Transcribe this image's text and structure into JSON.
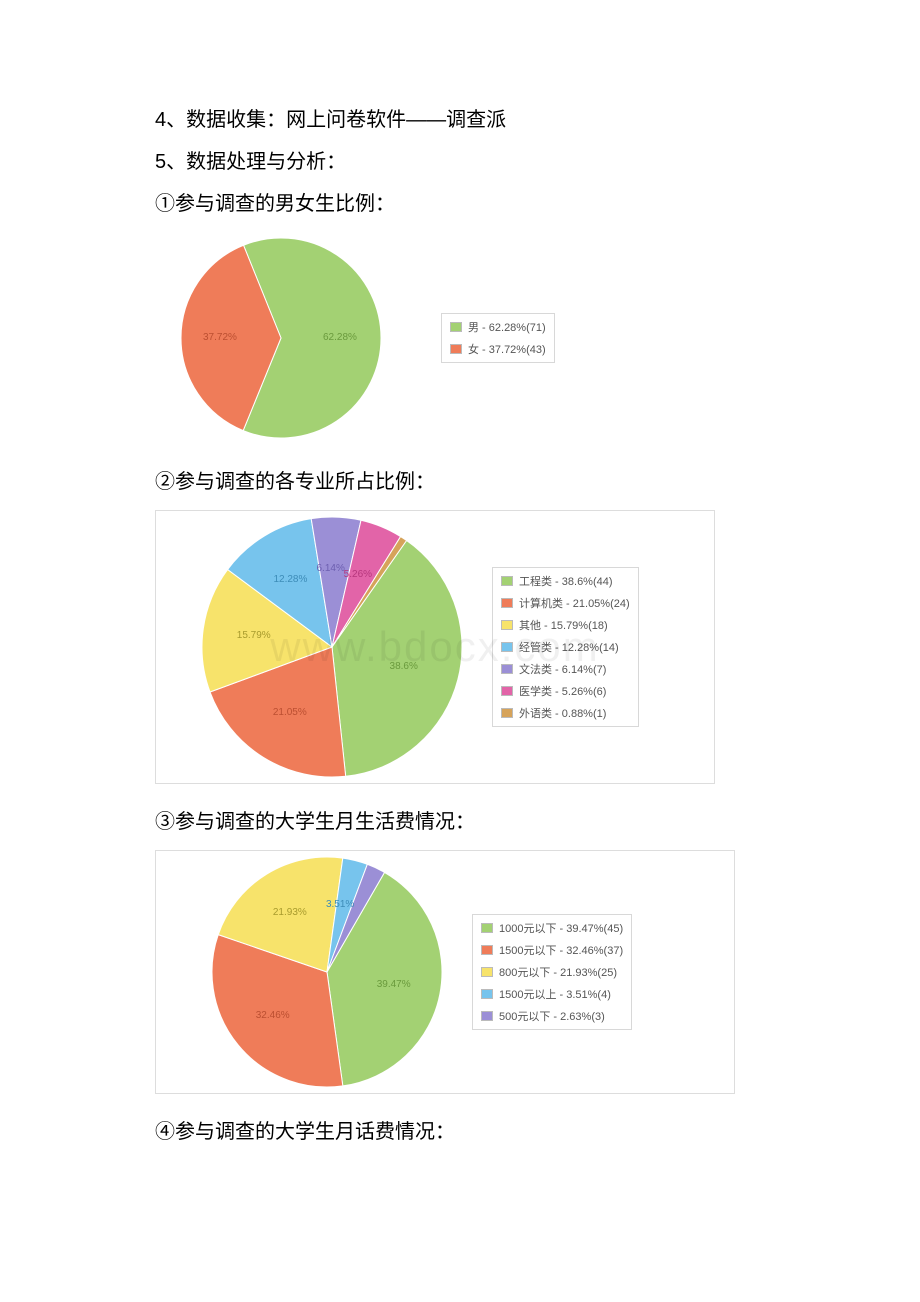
{
  "lines": {
    "l4": "4、数据收集：网上问卷软件——调查派",
    "l5": "5、数据处理与分析：",
    "h1": "①参与调查的男女生比例：",
    "h2": "②参与调查的各专业所占比例：",
    "h3": "③参与调查的大学生月生活费情况：",
    "h4": "④参与调查的大学生月话费情况："
  },
  "watermark": "www.bdocx.com",
  "chart1": {
    "type": "pie",
    "diameter": 200,
    "slices": [
      {
        "label": "男",
        "pct": 62.28,
        "count": 71,
        "color": "#a3d173",
        "textColor": "#6a9a3d"
      },
      {
        "label": "女",
        "pct": 37.72,
        "count": 43,
        "color": "#ef7c59",
        "textColor": "#bb4f31"
      }
    ],
    "startAngle": -22,
    "legendLeft": 270
  },
  "chart2": {
    "type": "pie",
    "diameter": 260,
    "slices": [
      {
        "label": "工程类",
        "pct": 38.6,
        "count": 44,
        "color": "#a3d173",
        "textColor": "#6a9a3d"
      },
      {
        "label": "计算机类",
        "pct": 21.05,
        "count": 24,
        "color": "#ef7c59",
        "textColor": "#bb4f31"
      },
      {
        "label": "其他",
        "pct": 15.79,
        "count": 18,
        "color": "#f7e36b",
        "textColor": "#a89b2d"
      },
      {
        "label": "经管类",
        "pct": 12.28,
        "count": 14,
        "color": "#77c4ed",
        "textColor": "#3d8cb8"
      },
      {
        "label": "文法类",
        "pct": 6.14,
        "count": 7,
        "color": "#9b8fd6",
        "textColor": "#6d5fb0"
      },
      {
        "label": "医学类",
        "pct": 5.26,
        "count": 6,
        "color": "#e264a8",
        "textColor": "#b5367c"
      },
      {
        "label": "外语类",
        "pct": 0.88,
        "count": 1,
        "color": "#d6a35a",
        "textColor": "#a6762e"
      }
    ],
    "startAngle": 35,
    "legendLeft": 360,
    "skipLabels": [
      6
    ]
  },
  "chart3": {
    "type": "pie",
    "diameter": 230,
    "slices": [
      {
        "label": "1000元以下",
        "pct": 39.47,
        "count": 45,
        "color": "#a3d173",
        "textColor": "#6a9a3d"
      },
      {
        "label": "1500元以下",
        "pct": 32.46,
        "count": 37,
        "color": "#ef7c59",
        "textColor": "#bb4f31"
      },
      {
        "label": "800元以下",
        "pct": 21.93,
        "count": 25,
        "color": "#f7e36b",
        "textColor": "#a89b2d"
      },
      {
        "label": "1500元以上",
        "pct": 3.51,
        "count": 4,
        "color": "#77c4ed",
        "textColor": "#3d8cb8"
      },
      {
        "label": "500元以下",
        "pct": 2.63,
        "count": 3,
        "color": "#9b8fd6",
        "textColor": "#6d5fb0"
      }
    ],
    "startAngle": 30,
    "legendLeft": 340,
    "skipLabels": [
      4
    ]
  }
}
